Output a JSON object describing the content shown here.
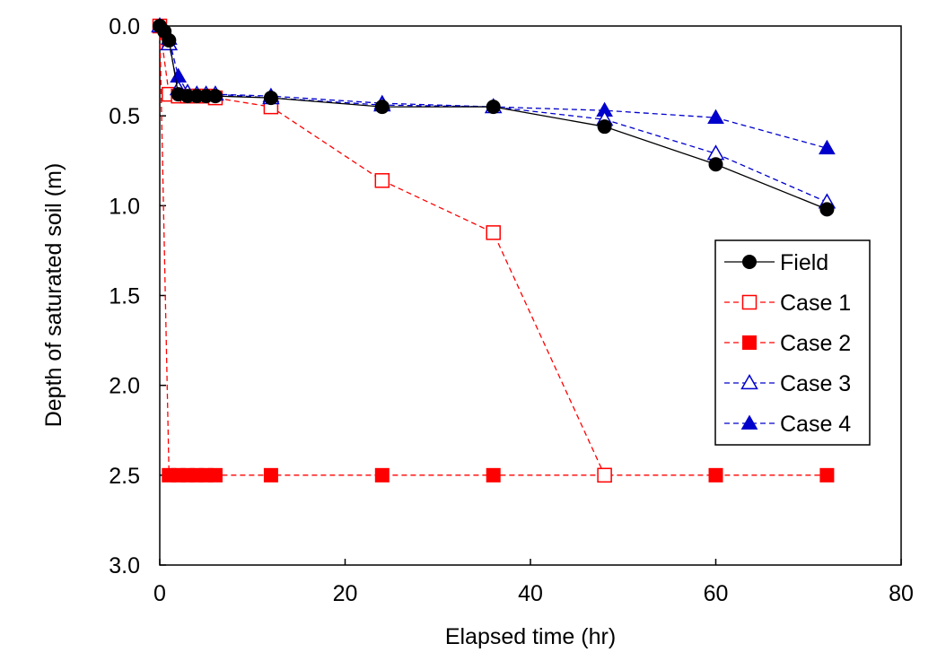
{
  "chart_data": {
    "type": "line",
    "title": "",
    "xlabel": "Elapsed time (hr)",
    "ylabel": "Depth of saturated soil (m)",
    "xlim": [
      0,
      80
    ],
    "ylim": [
      0,
      3.0
    ],
    "y_inverted": true,
    "xticks": [
      0,
      20,
      40,
      60,
      80
    ],
    "yticks": [
      0.0,
      0.5,
      1.0,
      1.5,
      2.0,
      2.5,
      3.0
    ],
    "ytick_labels": [
      "0.0",
      "0.5",
      "1.0",
      "1.5",
      "2.0",
      "2.5",
      "3.0"
    ],
    "grid": false,
    "legend_position": "right",
    "series": [
      {
        "name": "Field",
        "color": "#000000",
        "line_style": "solid",
        "marker": "circle-filled",
        "x": [
          0,
          0.5,
          1,
          2,
          3,
          4,
          5,
          6,
          12,
          24,
          36,
          48,
          60,
          72
        ],
        "y": [
          0.0,
          0.03,
          0.08,
          0.38,
          0.39,
          0.39,
          0.39,
          0.39,
          0.4,
          0.45,
          0.45,
          0.56,
          0.77,
          1.02
        ]
      },
      {
        "name": "Case 1",
        "color": "#ff0000",
        "line_style": "dashed",
        "marker": "square-open",
        "x": [
          0,
          1,
          2,
          3,
          4,
          5,
          6,
          12,
          24,
          36,
          48
        ],
        "y": [
          0.0,
          0.38,
          0.39,
          0.39,
          0.39,
          0.39,
          0.4,
          0.45,
          0.86,
          1.15,
          2.5
        ]
      },
      {
        "name": "Case 2",
        "color": "#ff0000",
        "line_style": "dashed",
        "marker": "square-filled",
        "x": [
          0,
          1,
          2,
          3,
          4,
          5,
          6,
          12,
          24,
          36,
          48,
          60,
          72
        ],
        "y": [
          0.0,
          2.5,
          2.5,
          2.5,
          2.5,
          2.5,
          2.5,
          2.5,
          2.5,
          2.5,
          2.5,
          2.5,
          2.5
        ]
      },
      {
        "name": "Case 3",
        "color": "#0000cc",
        "line_style": "dashed",
        "marker": "triangle-open",
        "x": [
          0,
          1,
          2,
          3,
          4,
          5,
          6,
          12,
          24,
          36,
          48,
          60,
          72
        ],
        "y": [
          0.0,
          0.1,
          0.35,
          0.37,
          0.38,
          0.38,
          0.38,
          0.4,
          0.44,
          0.45,
          0.52,
          0.71,
          0.98
        ]
      },
      {
        "name": "Case 4",
        "color": "#0000cc",
        "line_style": "dashed",
        "marker": "triangle-filled",
        "x": [
          0,
          1,
          2,
          3,
          4,
          5,
          6,
          12,
          24,
          36,
          48,
          60,
          72
        ],
        "y": [
          0.0,
          0.07,
          0.28,
          0.37,
          0.38,
          0.38,
          0.38,
          0.39,
          0.43,
          0.45,
          0.47,
          0.51,
          0.68
        ]
      }
    ]
  }
}
